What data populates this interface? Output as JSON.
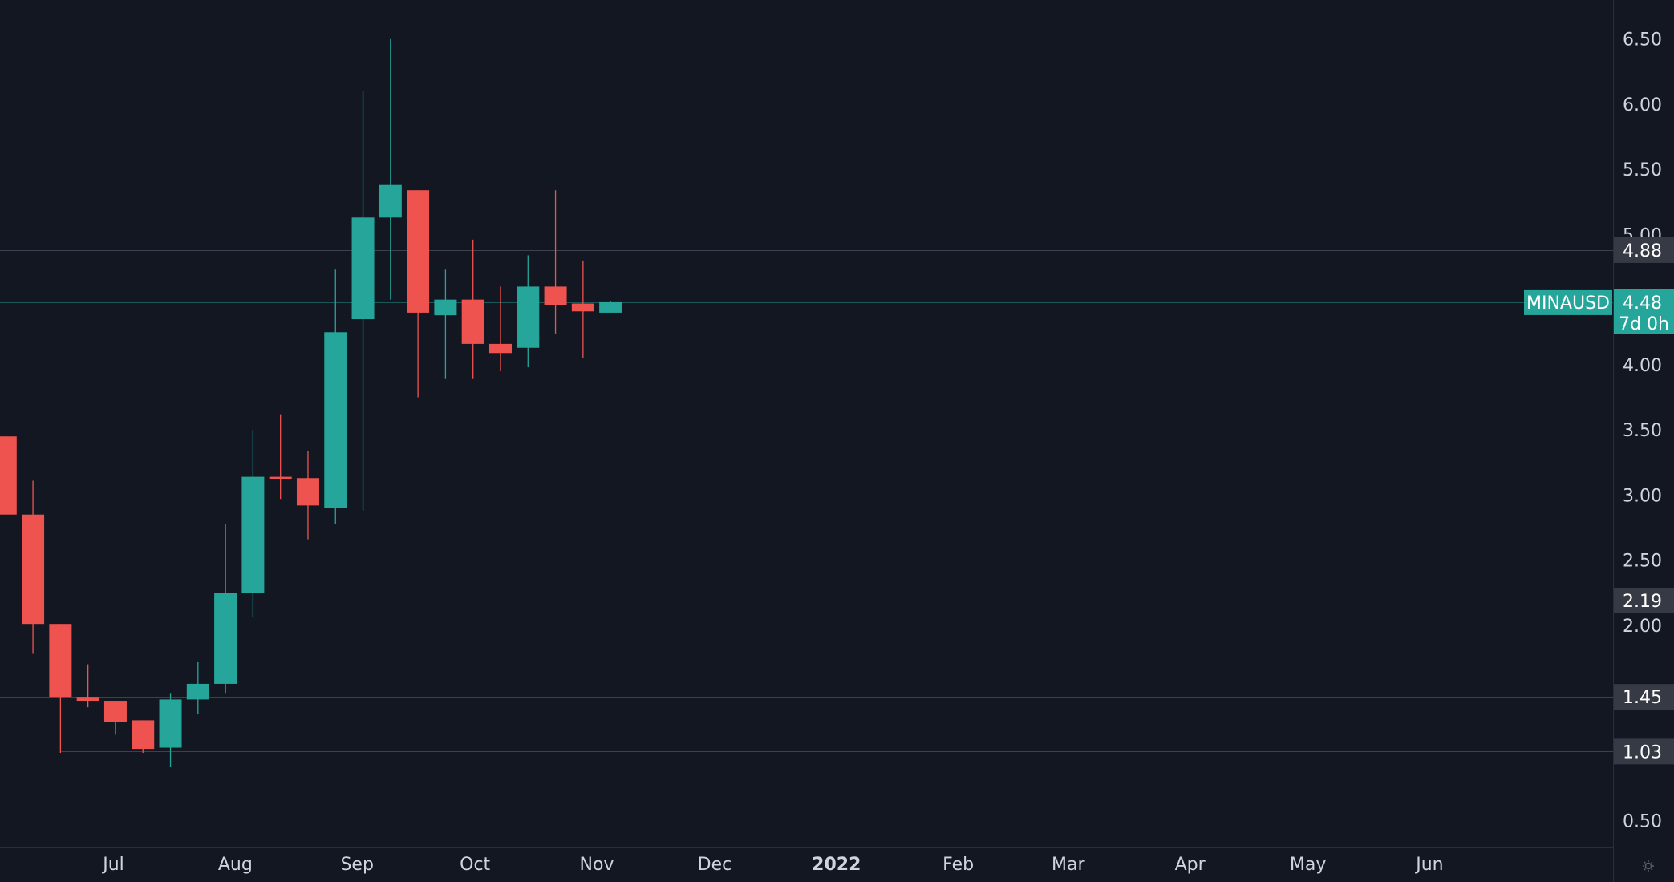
{
  "colors": {
    "background": "#131722",
    "up": "#26a69a",
    "down": "#ef5350",
    "axis_text": "#d1d4dc",
    "axis_line": "#2a2e39",
    "level_line": "#3a4150",
    "level_label_bg": "#363a45",
    "current_price": "#26a69a"
  },
  "chart_data": {
    "type": "candlestick",
    "symbol": "MINAUSD",
    "interval": "1W",
    "current_price": 4.48,
    "countdown": "7d 0h",
    "ylim": [
      0.3,
      6.8
    ],
    "y_ticks": [
      0.5,
      2.0,
      2.5,
      3.0,
      3.5,
      4.0,
      4.5,
      5.0,
      5.5,
      6.0,
      6.5
    ],
    "y_tick_labels": [
      "0.50",
      "2.00",
      "2.50",
      "3.00",
      "3.50",
      "4.00",
      "4.50",
      "5.00",
      "5.50",
      "6.00",
      "6.50"
    ],
    "x_labels": [
      {
        "text": "n",
        "date": "2021-06-01"
      },
      {
        "text": "Jul",
        "date": "2021-07-01"
      },
      {
        "text": "Aug",
        "date": "2021-08-01"
      },
      {
        "text": "Sep",
        "date": "2021-09-01"
      },
      {
        "text": "Oct",
        "date": "2021-10-01"
      },
      {
        "text": "Nov",
        "date": "2021-11-01"
      },
      {
        "text": "Dec",
        "date": "2021-12-01"
      },
      {
        "text": "2022",
        "date": "2022-01-01",
        "bold": true
      },
      {
        "text": "Feb",
        "date": "2022-02-01"
      },
      {
        "text": "Mar",
        "date": "2022-03-01"
      },
      {
        "text": "Apr",
        "date": "2022-04-01"
      },
      {
        "text": "May",
        "date": "2022-05-01"
      },
      {
        "text": "Jun",
        "date": "2022-06-01"
      }
    ],
    "horizontal_levels": [
      {
        "value": 4.88,
        "label": "4.88"
      },
      {
        "value": 2.19,
        "label": "2.19"
      },
      {
        "value": 1.45,
        "label": "1.45"
      },
      {
        "value": 1.03,
        "label": "1.03",
        "start_date": "2021-06-14"
      }
    ],
    "candles": [
      {
        "date": "2021-05-31",
        "open": 3.45,
        "high": 3.45,
        "low": 2.85,
        "close": 2.85
      },
      {
        "date": "2021-06-07",
        "open": 2.85,
        "high": 3.11,
        "low": 1.78,
        "close": 2.01
      },
      {
        "date": "2021-06-14",
        "open": 2.01,
        "high": 2.01,
        "low": 1.02,
        "close": 1.45
      },
      {
        "date": "2021-06-21",
        "open": 1.45,
        "high": 1.7,
        "low": 1.37,
        "close": 1.42
      },
      {
        "date": "2021-06-28",
        "open": 1.42,
        "high": 1.42,
        "low": 1.16,
        "close": 1.26
      },
      {
        "date": "2021-07-05",
        "open": 1.27,
        "high": 1.27,
        "low": 1.02,
        "close": 1.05
      },
      {
        "date": "2021-07-12",
        "open": 1.06,
        "high": 1.48,
        "low": 0.91,
        "close": 1.43
      },
      {
        "date": "2021-07-19",
        "open": 1.43,
        "high": 1.72,
        "low": 1.32,
        "close": 1.55
      },
      {
        "date": "2021-07-26",
        "open": 1.55,
        "high": 2.78,
        "low": 1.48,
        "close": 2.25
      },
      {
        "date": "2021-08-02",
        "open": 2.25,
        "high": 3.5,
        "low": 2.06,
        "close": 3.14
      },
      {
        "date": "2021-08-09",
        "open": 3.14,
        "high": 3.62,
        "low": 2.97,
        "close": 3.12
      },
      {
        "date": "2021-08-16",
        "open": 3.13,
        "high": 3.34,
        "low": 2.66,
        "close": 2.92
      },
      {
        "date": "2021-08-23",
        "open": 2.9,
        "high": 4.73,
        "low": 2.78,
        "close": 4.25
      },
      {
        "date": "2021-08-30",
        "open": 4.35,
        "high": 6.1,
        "low": 2.88,
        "close": 5.13
      },
      {
        "date": "2021-09-06",
        "open": 5.13,
        "high": 6.5,
        "low": 4.5,
        "close": 5.38
      },
      {
        "date": "2021-09-13",
        "open": 5.34,
        "high": 5.34,
        "low": 3.75,
        "close": 4.4
      },
      {
        "date": "2021-09-20",
        "open": 4.38,
        "high": 4.73,
        "low": 3.89,
        "close": 4.5
      },
      {
        "date": "2021-09-27",
        "open": 4.5,
        "high": 4.96,
        "low": 3.89,
        "close": 4.16
      },
      {
        "date": "2021-10-04",
        "open": 4.16,
        "high": 4.6,
        "low": 3.95,
        "close": 4.09
      },
      {
        "date": "2021-10-11",
        "open": 4.13,
        "high": 4.84,
        "low": 3.98,
        "close": 4.6
      },
      {
        "date": "2021-10-18",
        "open": 4.6,
        "high": 5.34,
        "low": 4.24,
        "close": 4.46
      },
      {
        "date": "2021-10-25",
        "open": 4.47,
        "high": 4.8,
        "low": 4.05,
        "close": 4.41
      },
      {
        "date": "2021-11-01",
        "open": 4.4,
        "high": 4.49,
        "low": 4.4,
        "close": 4.48
      }
    ]
  }
}
